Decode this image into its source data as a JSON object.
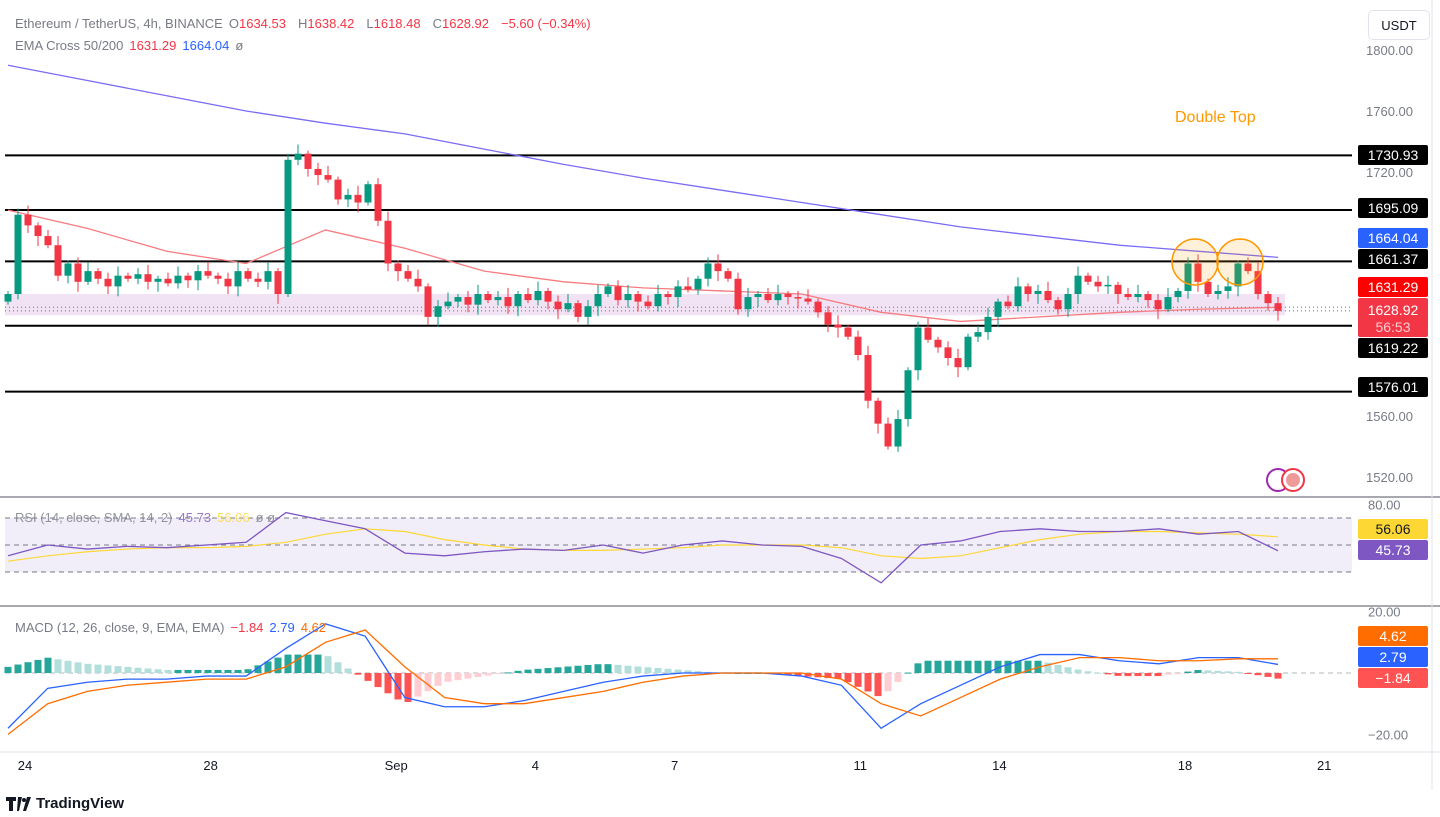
{
  "header": {
    "symbol": "Ethereum / TetherUS, 4h, BINANCE",
    "o_label": "O",
    "o": "1634.53",
    "h_label": "H",
    "h": "1638.42",
    "l_label": "L",
    "l": "1618.48",
    "c_label": "C",
    "c": "1628.92",
    "change": "−5.60 (−0.34%)",
    "ema_label": "EMA Cross 50/200",
    "ema50": "1631.29",
    "ema200": "1664.04",
    "ema_extra": "ø"
  },
  "currency_button": "USDT",
  "rsi_legend": {
    "label": "RSI (14, close, SMA, 14, 2)",
    "rsi": "45.73",
    "sma": "56.06",
    "extra": "ø ø"
  },
  "macd_legend": {
    "label": "MACD (12, 26, close, 9, EMA, EMA)",
    "hist": "−1.84",
    "macd": "2.79",
    "signal": "4.62"
  },
  "footer": {
    "brand": "TradingView"
  },
  "colors": {
    "up": "#089981",
    "down": "#f23645",
    "ema50": "#f77c80",
    "ema200": "#7b6cf6",
    "rsi": "#7e57c2",
    "rsi_sma": "#fdd835",
    "macd": "#2962ff",
    "signal": "#ff6d00",
    "annotation": "#ff9800"
  },
  "chart_data": {
    "type": "candlestick",
    "price_axis": {
      "ylim": [
        1500,
        1815
      ],
      "ticks": [
        "1800.00",
        "1760.00",
        "1720.00",
        "1560.00",
        "1520.00"
      ]
    },
    "time_axis": {
      "ticks": [
        {
          "label": "24",
          "date": "08-24"
        },
        {
          "label": "28",
          "date": "08-28"
        },
        {
          "label": "Sep",
          "date": "09-01"
        },
        {
          "label": "4",
          "date": "09-04"
        },
        {
          "label": "7",
          "date": "09-07"
        },
        {
          "label": "11",
          "date": "09-11"
        },
        {
          "label": "14",
          "date": "09-14"
        },
        {
          "label": "18",
          "date": "09-18"
        },
        {
          "label": "21",
          "date": "09-21"
        }
      ]
    },
    "first_open": 1635,
    "closes": [
      1640,
      1692,
      1685,
      1678,
      1672,
      1652,
      1660,
      1648,
      1655,
      1650,
      1645,
      1652,
      1650,
      1653,
      1648,
      1650,
      1647,
      1652,
      1649,
      1655,
      1652,
      1650,
      1645,
      1655,
      1650,
      1648,
      1655,
      1640,
      1728,
      1732,
      1722,
      1718,
      1715,
      1702,
      1705,
      1700,
      1712,
      1688,
      1660,
      1655,
      1650,
      1645,
      1625,
      1632,
      1635,
      1638,
      1633,
      1640,
      1636,
      1638,
      1632,
      1640,
      1636,
      1642,
      1635,
      1630,
      1634,
      1625,
      1632,
      1640,
      1645,
      1636,
      1640,
      1635,
      1632,
      1640,
      1638,
      1645,
      1643,
      1650,
      1660,
      1655,
      1650,
      1630,
      1638,
      1640,
      1636,
      1640,
      1638,
      1637,
      1635,
      1628,
      1620,
      1618,
      1612,
      1600,
      1570,
      1555,
      1540,
      1558,
      1590,
      1618,
      1610,
      1605,
      1598,
      1592,
      1612,
      1615,
      1625,
      1635,
      1632,
      1645,
      1640,
      1642,
      1636,
      1630,
      1640,
      1652,
      1648,
      1645,
      1646,
      1640,
      1638,
      1640,
      1636,
      1630,
      1638,
      1642,
      1660,
      1648,
      1640,
      1642,
      1645,
      1660,
      1655,
      1640,
      1634,
      1628.92
    ],
    "ema200": [
      1790,
      1780,
      1770,
      1760,
      1752,
      1745,
      1735,
      1725,
      1716,
      1708,
      1700,
      1692,
      1684,
      1678,
      1672,
      1668,
      1664.04
    ],
    "ema50": [
      1695,
      1683,
      1668,
      1660,
      1682,
      1670,
      1655,
      1648,
      1644,
      1642,
      1640,
      1628,
      1622,
      1625,
      1628,
      1630,
      1631.29
    ],
    "levels": [
      {
        "label": "1730.93",
        "value": 1730.93
      },
      {
        "label": "1695.09",
        "value": 1695.09
      },
      {
        "label": "1661.37",
        "value": 1661.37
      },
      {
        "label": "1619.22",
        "value": 1619.22
      },
      {
        "label": "1576.01",
        "value": 1576.01
      }
    ],
    "zone": [
      1626,
      1640
    ],
    "price_labels": {
      "ema200": "1664.04",
      "ema50": "1631.29",
      "last": "1628.92",
      "countdown": "56:53"
    },
    "annotation": {
      "text": "Double Top",
      "tops": [
        1661,
        1661
      ]
    },
    "rsi": {
      "ylim": [
        10,
        85
      ],
      "ticks": [
        "80.00"
      ],
      "bands": [
        70,
        50,
        30
      ],
      "values": [
        42,
        50,
        47,
        49,
        48,
        50,
        52,
        74,
        68,
        62,
        44,
        42,
        45,
        47,
        46,
        50,
        44,
        50,
        53,
        50,
        49,
        40,
        22,
        50,
        53,
        60,
        62,
        60,
        60,
        62,
        58,
        60,
        45.73
      ],
      "sma": [
        38,
        42,
        45,
        47,
        48,
        48,
        49,
        52,
        58,
        62,
        60,
        54,
        50,
        47,
        46,
        46,
        47,
        48,
        50,
        50,
        50,
        48,
        42,
        40,
        42,
        48,
        54,
        58,
        60,
        60,
        59,
        58,
        56.06
      ],
      "labels": {
        "sma": "56.06",
        "rsi": "45.73"
      }
    },
    "macd": {
      "ylim": [
        -24,
        22
      ],
      "ticks": [
        "20.00",
        "−20.00"
      ],
      "macd": [
        -18,
        -5,
        -3,
        -2,
        -2,
        -1,
        -1,
        8,
        16,
        12,
        -8,
        -11,
        -11,
        -9,
        -6,
        -3,
        -1,
        0,
        0,
        0,
        -1,
        -4,
        -18,
        -10,
        -4,
        2,
        6,
        6,
        4,
        3,
        5,
        5,
        2.79
      ],
      "signal": [
        -20,
        -10,
        -6,
        -4,
        -3,
        -2,
        -2,
        2,
        10,
        14,
        2,
        -8,
        -10,
        -10,
        -8,
        -6,
        -3,
        -1,
        0,
        0,
        0,
        -2,
        -10,
        -14,
        -8,
        -2,
        2,
        5,
        5,
        4,
        4,
        4.62,
        4.62
      ],
      "labels": {
        "signal": "4.62",
        "macd": "2.79",
        "hist": "−1.84"
      }
    }
  }
}
